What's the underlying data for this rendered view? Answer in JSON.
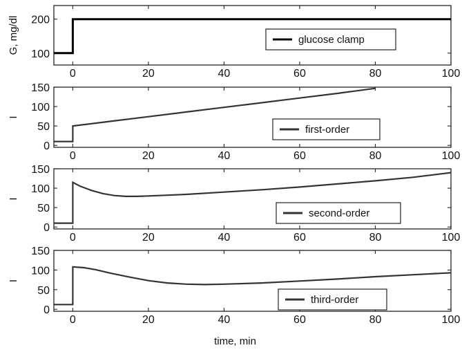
{
  "chart_data": [
    {
      "type": "line",
      "ylabel": "G, mg/dl",
      "xlim": [
        -5,
        100
      ],
      "ylim": [
        65,
        240
      ],
      "xticks": [
        0,
        20,
        40,
        60,
        80,
        100
      ],
      "yticks": [
        100,
        200
      ],
      "grid": false,
      "legend_position": "center-right",
      "series": [
        {
          "name": "glucose clamp",
          "color": "#000000",
          "x": [
            -5,
            0,
            0,
            100
          ],
          "y": [
            100,
            100,
            200,
            200
          ]
        }
      ]
    },
    {
      "type": "line",
      "ylabel": "I",
      "xlim": [
        -5,
        100
      ],
      "ylim": [
        -5,
        150
      ],
      "xticks": [
        0,
        20,
        40,
        60,
        80,
        100
      ],
      "yticks": [
        0,
        50,
        100,
        150
      ],
      "grid": false,
      "legend_position": "lower-right",
      "series": [
        {
          "name": "first-order",
          "color": "#333333",
          "x": [
            -5,
            0,
            0,
            10,
            20,
            30,
            40,
            50,
            60,
            70,
            80
          ],
          "y": [
            10,
            10,
            50,
            62,
            74,
            86,
            98,
            110,
            122,
            134,
            147
          ]
        }
      ]
    },
    {
      "type": "line",
      "ylabel": "I",
      "xlim": [
        -5,
        100
      ],
      "ylim": [
        -5,
        150
      ],
      "xticks": [
        0,
        20,
        40,
        60,
        80,
        100
      ],
      "yticks": [
        0,
        50,
        100,
        150
      ],
      "grid": false,
      "legend_position": "lower-right",
      "series": [
        {
          "name": "second-order",
          "color": "#333333",
          "x": [
            -5,
            0,
            0,
            2,
            5,
            8,
            11,
            14,
            17,
            20,
            25,
            30,
            40,
            50,
            60,
            70,
            80,
            90,
            100
          ],
          "y": [
            10,
            10,
            115,
            105,
            94,
            86,
            81,
            79,
            79,
            80,
            82,
            84,
            90,
            96,
            103,
            111,
            119,
            128,
            140
          ]
        }
      ]
    },
    {
      "type": "line",
      "ylabel": "I",
      "xlim": [
        -5,
        100
      ],
      "ylim": [
        -5,
        150
      ],
      "xticks": [
        0,
        20,
        40,
        60,
        80,
        100
      ],
      "yticks": [
        0,
        50,
        100,
        150
      ],
      "grid": false,
      "legend_position": "lower-right",
      "series": [
        {
          "name": "third-order",
          "color": "#333333",
          "x": [
            -5,
            0,
            0,
            3,
            6,
            10,
            15,
            20,
            25,
            30,
            35,
            40,
            50,
            60,
            70,
            80,
            90,
            100
          ],
          "y": [
            12,
            12,
            108,
            106,
            101,
            92,
            82,
            73,
            67,
            64,
            63,
            64,
            67,
            72,
            77,
            83,
            88,
            93
          ]
        }
      ]
    }
  ],
  "xlabel": "time, min"
}
